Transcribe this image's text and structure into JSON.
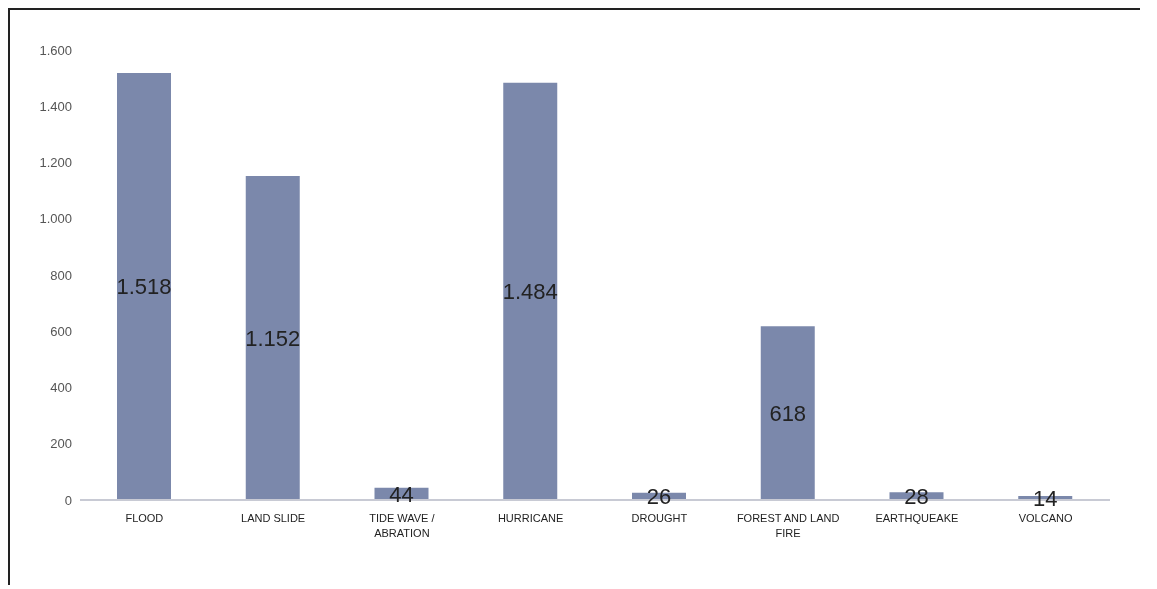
{
  "chart_data": {
    "type": "bar",
    "categories": [
      "FLOOD",
      "LAND SLIDE",
      "TIDE WAVE / ABRATION",
      "HURRICANE",
      "DROUGHT",
      "FOREST AND LAND FIRE",
      "EARTHQUEAKE",
      "VOLCANO"
    ],
    "values": [
      1518,
      1152,
      44,
      1484,
      26,
      618,
      28,
      14
    ],
    "value_labels": [
      "1.518",
      "1.152",
      "44",
      "1.484",
      "26",
      "618",
      "28",
      "14"
    ],
    "color": "#7b88ab",
    "ylim": [
      0,
      1600
    ],
    "yticks": [
      {
        "value": 0,
        "label": "0"
      },
      {
        "value": 200,
        "label": "200"
      },
      {
        "value": 400,
        "label": "400"
      },
      {
        "value": 600,
        "label": "600"
      },
      {
        "value": 800,
        "label": "800"
      },
      {
        "value": 1000,
        "label": "1.000"
      },
      {
        "value": 1200,
        "label": "1.200"
      },
      {
        "value": 1400,
        "label": "1.400"
      },
      {
        "value": 1600,
        "label": "1.600"
      }
    ],
    "grid": false
  }
}
